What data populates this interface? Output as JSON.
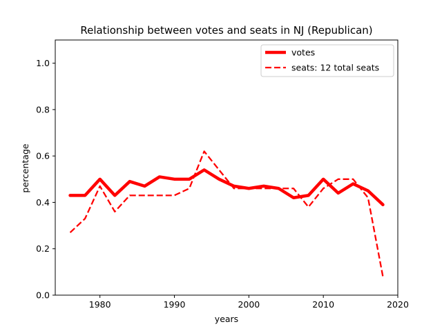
{
  "chart_data": {
    "type": "line",
    "title": "Relationship between votes and seats in NJ (Republican)",
    "xlabel": "years",
    "ylabel": "percentage",
    "xlim": [
      1974,
      2020
    ],
    "ylim": [
      0,
      1.1
    ],
    "xticks": [
      1980,
      1990,
      2000,
      2010,
      2020
    ],
    "yticks": [
      0.0,
      0.2,
      0.4,
      0.6,
      0.8,
      1.0
    ],
    "xtick_labels": [
      "1980",
      "1990",
      "2000",
      "2010",
      "2020"
    ],
    "ytick_labels": [
      "0.0",
      "0.2",
      "0.4",
      "0.6",
      "0.8",
      "1.0"
    ],
    "grid": false,
    "legend_position": "top-right",
    "series": [
      {
        "name": "votes",
        "style": "solid",
        "color": "#ff0000",
        "x": [
          1976,
          1978,
          1980,
          1982,
          1984,
          1986,
          1988,
          1990,
          1992,
          1994,
          1996,
          1998,
          2000,
          2002,
          2004,
          2006,
          2008,
          2010,
          2012,
          2014,
          2016,
          2018
        ],
        "y": [
          0.43,
          0.43,
          0.5,
          0.43,
          0.49,
          0.47,
          0.51,
          0.5,
          0.5,
          0.54,
          0.5,
          0.47,
          0.46,
          0.47,
          0.46,
          0.42,
          0.43,
          0.5,
          0.44,
          0.48,
          0.45,
          0.39
        ]
      },
      {
        "name": "seats: 12 total seats",
        "style": "dashed",
        "color": "#ff0000",
        "x": [
          1976,
          1978,
          1980,
          1982,
          1984,
          1986,
          1988,
          1990,
          1992,
          1994,
          1996,
          1998,
          2000,
          2002,
          2004,
          2006,
          2008,
          2010,
          2012,
          2014,
          2016,
          2018
        ],
        "y": [
          0.27,
          0.33,
          0.47,
          0.36,
          0.43,
          0.43,
          0.43,
          0.43,
          0.46,
          0.62,
          0.54,
          0.46,
          0.46,
          0.46,
          0.46,
          0.46,
          0.38,
          0.46,
          0.5,
          0.5,
          0.42,
          0.08
        ]
      }
    ]
  }
}
